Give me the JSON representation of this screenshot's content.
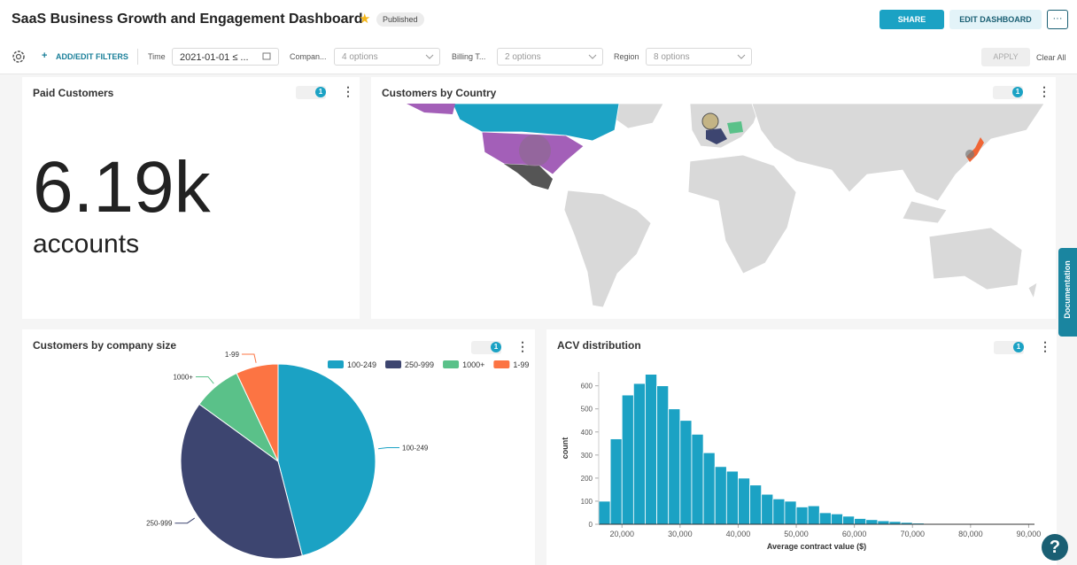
{
  "header": {
    "title": "SaaS Business Growth and Engagement Dashboard",
    "status": "Published",
    "share": "SHARE",
    "edit": "EDIT DASHBOARD",
    "more": "···"
  },
  "filters": {
    "add": "ADD/EDIT FILTERS",
    "items": [
      {
        "label": "Time",
        "value": "2021-01-01 ≤ ..."
      },
      {
        "label": "Compan...",
        "value": "4 options"
      },
      {
        "label": "Billing T...",
        "value": "2 options"
      },
      {
        "label": "Region",
        "value": "8 options"
      }
    ],
    "apply": "APPLY",
    "clear": "Clear All"
  },
  "big_number": {
    "title": "Paid Customers",
    "value": "6.19k",
    "subtitle": "accounts",
    "filter_count": 1
  },
  "map": {
    "title": "Customers by Country",
    "filter_count": 1
  },
  "filter_counts": [
    1,
    1
  ],
  "chart_data": [
    {
      "type": "pie",
      "title": "Customers by company size",
      "categories": [
        "100-249",
        "250-999",
        "1000+",
        "1-99"
      ],
      "values": [
        46,
        39,
        8,
        7
      ],
      "colors": [
        "#1ba2c4",
        "#3d4570",
        "#5ac189",
        "#fc7443"
      ],
      "legend": "top-right"
    },
    {
      "type": "histogram",
      "title": "ACV distribution",
      "color": "#1ba2c4",
      "bins": [
        16000,
        18000,
        20000,
        22000,
        24000,
        26000,
        28000,
        30000,
        32000,
        34000,
        36000,
        38000,
        40000,
        42000,
        44000,
        46000,
        48000,
        50000,
        52000,
        54000,
        56000,
        58000,
        60000,
        62000,
        64000,
        66000,
        68000,
        70000,
        72000,
        74000,
        76000
      ],
      "values": [
        100,
        370,
        560,
        610,
        650,
        600,
        500,
        450,
        390,
        310,
        250,
        230,
        200,
        170,
        130,
        110,
        100,
        75,
        80,
        50,
        45,
        35,
        25,
        20,
        15,
        12,
        8,
        5,
        3,
        2
      ],
      "xlim": [
        16000,
        91000
      ],
      "ylim": [
        0,
        660
      ],
      "xticks": [
        {
          "value": 20000,
          "label": "20,000"
        },
        {
          "value": 30000,
          "label": "30,000"
        },
        {
          "value": 40000,
          "label": "40,000"
        },
        {
          "value": 50000,
          "label": "50,000"
        },
        {
          "value": 60000,
          "label": "60,000"
        },
        {
          "value": 70000,
          "label": "70,000"
        },
        {
          "value": 80000,
          "label": "80,000"
        },
        {
          "value": 90000,
          "label": "90,000"
        }
      ],
      "yticks": [
        0,
        100,
        200,
        300,
        400,
        500,
        600
      ],
      "xlabel": "Average contract value ($)",
      "ylabel": "count"
    }
  ],
  "documentation": "Documentation",
  "help": "?"
}
